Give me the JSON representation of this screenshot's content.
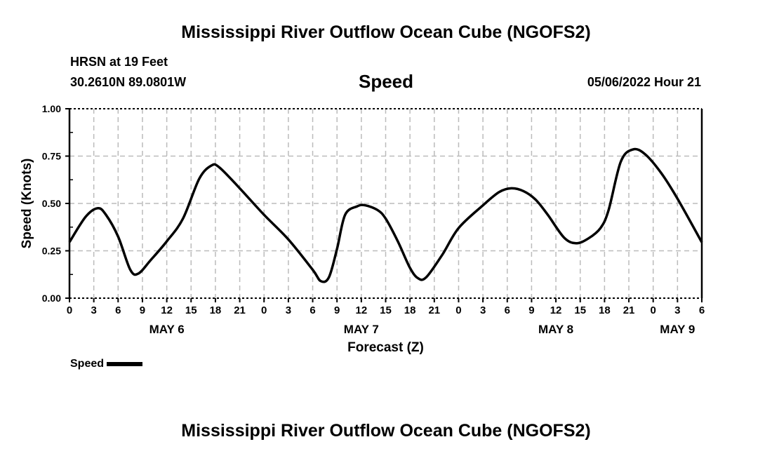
{
  "header": {
    "title": "Mississippi River Outflow Ocean Cube (NGOFS2)",
    "station": "HRSN at 19 Feet",
    "coords": "30.2610N  89.0801W",
    "variable": "Speed",
    "datetime": "05/06/2022 Hour 21",
    "footer_title": "Mississippi River Outflow Ocean Cube (NGOFS2)"
  },
  "legend": {
    "label": "Speed"
  },
  "chart_data": {
    "type": "line",
    "title": "Speed",
    "xlabel": "Forecast (Z)",
    "ylabel": "Speed (Knots)",
    "xlim": [
      0,
      78
    ],
    "ylim": [
      0,
      1
    ],
    "yticks": [
      "0.00",
      "0.25",
      "0.50",
      "0.75",
      "1.00"
    ],
    "ytick_values": [
      0,
      0.25,
      0.5,
      0.75,
      1
    ],
    "xtick_labels": [
      "0",
      "3",
      "6",
      "9",
      "12",
      "15",
      "18",
      "21",
      "0",
      "3",
      "6",
      "9",
      "12",
      "15",
      "18",
      "21",
      "0",
      "3",
      "6",
      "9",
      "12",
      "15",
      "18",
      "21",
      "0",
      "3",
      "6"
    ],
    "day_labels": [
      {
        "label": "MAY 6",
        "hour": 12
      },
      {
        "label": "MAY 7",
        "hour": 36
      },
      {
        "label": "MAY 8",
        "hour": 60
      },
      {
        "label": "MAY 9",
        "hour": 75
      }
    ],
    "grid": true,
    "series": [
      {
        "name": "Speed",
        "color": "#000000",
        "x": [
          0,
          2,
          3.5,
          4.5,
          6,
          7.5,
          8.5,
          10,
          12,
          14,
          16,
          17.5,
          18.5,
          21,
          24,
          27,
          30,
          31,
          32,
          33,
          34,
          35.5,
          36.5,
          38,
          39,
          40.5,
          42,
          43,
          44,
          46,
          48,
          51,
          53,
          54.5,
          56,
          57.5,
          59,
          61,
          62.5,
          64,
          65.5,
          66.5,
          68,
          69.5,
          71,
          73,
          75,
          78
        ],
        "y": [
          0.296,
          0.43,
          0.475,
          0.44,
          0.325,
          0.15,
          0.13,
          0.2,
          0.3,
          0.42,
          0.63,
          0.7,
          0.69,
          0.58,
          0.44,
          0.31,
          0.15,
          0.09,
          0.11,
          0.26,
          0.44,
          0.485,
          0.49,
          0.465,
          0.42,
          0.3,
          0.16,
          0.105,
          0.11,
          0.23,
          0.37,
          0.49,
          0.56,
          0.58,
          0.565,
          0.52,
          0.44,
          0.32,
          0.29,
          0.315,
          0.37,
          0.465,
          0.72,
          0.785,
          0.76,
          0.66,
          0.525,
          0.295
        ]
      }
    ]
  }
}
